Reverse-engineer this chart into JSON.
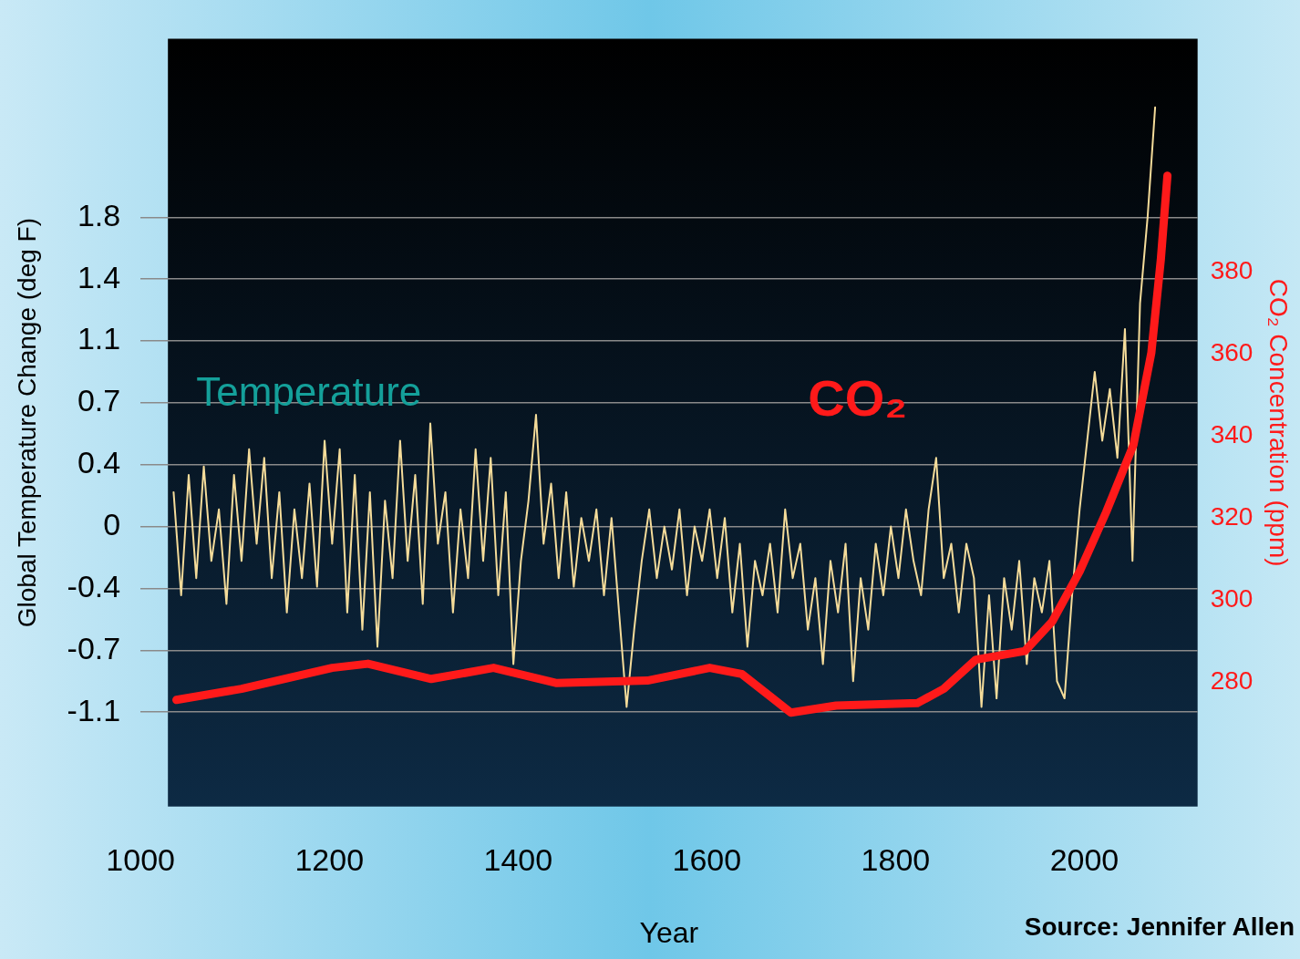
{
  "chart_data": {
    "type": "line",
    "xlabel": "Year",
    "ylabel": "Global Temperature Change (deg F)",
    "y2label": "CO₂ Concentration (ppm)",
    "xlim": [
      1000,
      2120
    ],
    "xticks": [
      1000,
      1200,
      1400,
      1600,
      1800,
      2000
    ],
    "ylim": [
      -1.63,
      2.84
    ],
    "yticks": [
      {
        "value": -1.08,
        "label": "-1.1"
      },
      {
        "value": -0.72,
        "label": "-0.7"
      },
      {
        "value": -0.36,
        "label": "-0.4"
      },
      0,
      {
        "value": 0.36,
        "label": "0.4"
      },
      {
        "value": 0.72,
        "label": "0.7"
      },
      {
        "value": 1.08,
        "label": "1.1"
      },
      {
        "value": 1.44,
        "label": "1.4"
      },
      1.8
    ],
    "y2lim": [
      249.7,
      436.8
    ],
    "y2ticks": [
      280,
      300,
      320,
      340,
      360,
      380
    ],
    "grid": "y",
    "legend": false,
    "marker": "none",
    "line_style": "solid",
    "annotations": [
      "Source: Jennifer Allen"
    ],
    "series": [
      {
        "name": "Temperature",
        "color": "#f5dc9a",
        "x": [
          1035,
          1043,
          1051,
          1059,
          1067,
          1075,
          1083,
          1091,
          1099,
          1107,
          1115,
          1123,
          1131,
          1139,
          1147,
          1155,
          1163,
          1171,
          1179,
          1187,
          1195,
          1203,
          1211,
          1219,
          1227,
          1235,
          1243,
          1251,
          1259,
          1267,
          1275,
          1283,
          1291,
          1299,
          1307,
          1315,
          1323,
          1331,
          1339,
          1347,
          1355,
          1363,
          1371,
          1379,
          1387,
          1395,
          1403,
          1411,
          1419,
          1427,
          1435,
          1443,
          1451,
          1459,
          1467,
          1475,
          1483,
          1491,
          1499,
          1507,
          1515,
          1523,
          1531,
          1539,
          1547,
          1555,
          1563,
          1571,
          1579,
          1587,
          1595,
          1603,
          1611,
          1619,
          1627,
          1635,
          1643,
          1651,
          1659,
          1667,
          1675,
          1683,
          1691,
          1699,
          1707,
          1715,
          1723,
          1731,
          1739,
          1747,
          1755,
          1763,
          1771,
          1779,
          1787,
          1795,
          1803,
          1811,
          1819,
          1827,
          1835,
          1843,
          1851,
          1859,
          1867,
          1875,
          1883,
          1891,
          1899,
          1907,
          1915,
          1923,
          1931,
          1939,
          1947,
          1955,
          1963,
          1971,
          1979,
          1987,
          1995,
          2003,
          2011,
          2019,
          2027,
          2035,
          2043,
          2051,
          2059,
          2067,
          2075
        ],
        "values": [
          0.2,
          -0.4,
          0.3,
          -0.3,
          0.35,
          -0.2,
          0.1,
          -0.45,
          0.3,
          -0.2,
          0.45,
          -0.1,
          0.4,
          -0.3,
          0.2,
          -0.5,
          0.1,
          -0.3,
          0.25,
          -0.35,
          0.5,
          -0.1,
          0.45,
          -0.5,
          0.3,
          -0.6,
          0.2,
          -0.7,
          0.15,
          -0.3,
          0.5,
          -0.2,
          0.3,
          -0.45,
          0.6,
          -0.1,
          0.2,
          -0.5,
          0.1,
          -0.3,
          0.45,
          -0.2,
          0.4,
          -0.4,
          0.2,
          -0.8,
          -0.2,
          0.15,
          0.65,
          -0.1,
          0.25,
          -0.3,
          0.2,
          -0.35,
          0.05,
          -0.2,
          0.1,
          -0.4,
          0.05,
          -0.5,
          -1.05,
          -0.6,
          -0.2,
          0.1,
          -0.3,
          0,
          -0.25,
          0.1,
          -0.4,
          0,
          -0.2,
          0.1,
          -0.3,
          0.05,
          -0.5,
          -0.1,
          -0.7,
          -0.2,
          -0.4,
          -0.1,
          -0.5,
          0.1,
          -0.3,
          -0.1,
          -0.6,
          -0.3,
          -0.8,
          -0.2,
          -0.5,
          -0.1,
          -0.9,
          -0.3,
          -0.6,
          -0.1,
          -0.4,
          0,
          -0.3,
          0.1,
          -0.2,
          -0.4,
          0.1,
          0.4,
          -0.3,
          -0.1,
          -0.5,
          -0.1,
          -0.3,
          -1.05,
          -0.4,
          -1,
          -0.3,
          -0.6,
          -0.2,
          -0.8,
          -0.3,
          -0.5,
          -0.2,
          -0.9,
          -1,
          -0.4,
          0.1,
          0.5,
          0.9,
          0.5,
          0.8,
          0.4,
          1.15,
          -0.2,
          1.3,
          1.8,
          2.44
        ]
      },
      {
        "name": "CO₂",
        "color": "#ff1a1a",
        "axis": "y2",
        "x": [
          1038,
          1107,
          1203,
          1241,
          1308,
          1374,
          1441,
          1537,
          1603,
          1637,
          1689,
          1737,
          1823,
          1851,
          1885,
          1937,
          1966,
          1995,
          2023,
          2052,
          2071,
          2081,
          2088
        ],
        "values": [
          275.7,
          278.4,
          283.5,
          284.5,
          280.8,
          283.5,
          279.8,
          280.4,
          283.5,
          282,
          272.6,
          274.3,
          274.9,
          278.4,
          285.5,
          287.6,
          294.8,
          307,
          321.4,
          337.8,
          360.3,
          382.9,
          403.4
        ]
      }
    ]
  }
}
